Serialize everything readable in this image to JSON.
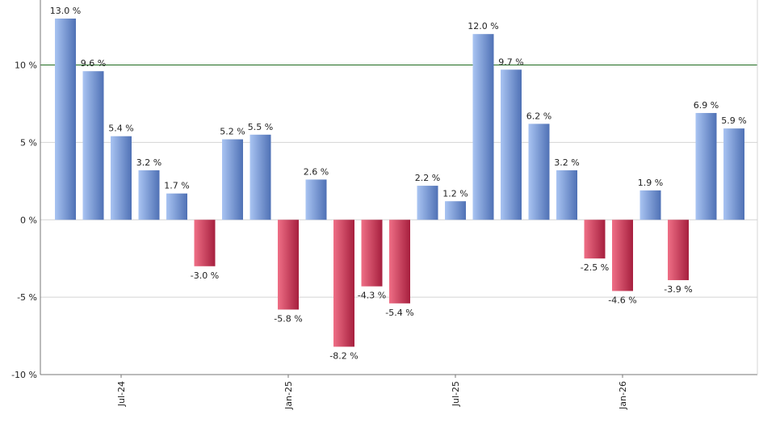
{
  "chart_data": {
    "type": "bar",
    "title": "",
    "xlabel": "",
    "ylabel": "",
    "ylim": [
      -10,
      14.2
    ],
    "yticks": [
      -10,
      -5,
      0,
      5,
      10
    ],
    "ytick_labels": [
      "-10 %",
      "-5 %",
      "0 %",
      "5 %",
      "10 %"
    ],
    "reference_line": 10,
    "grid": true,
    "colors": {
      "positive_light": "#a9c4f2",
      "positive_dark": "#4f71b5",
      "negative_light": "#ef6f86",
      "negative_dark": "#a61f3e",
      "reference_line": "#1e6b1e",
      "grid": "#d4d4d4",
      "axis": "#777777"
    },
    "values": [
      13.0,
      9.6,
      5.4,
      3.2,
      1.7,
      -3.0,
      5.2,
      5.5,
      -5.8,
      2.6,
      -8.2,
      -4.3,
      -5.4,
      2.2,
      1.2,
      12.0,
      9.7,
      6.2,
      3.2,
      -2.5,
      -4.6,
      1.9,
      -3.9,
      6.9,
      5.9
    ],
    "data_labels": [
      "13.0 %",
      "9.6 %",
      "5.4 %",
      "3.2 %",
      "1.7 %",
      "-3.0 %",
      "5.2 %",
      "5.5 %",
      "-5.8 %",
      "2.6 %",
      "-8.2 %",
      "-4.3 %",
      "-5.4 %",
      "2.2 %",
      "1.2 %",
      "12.0 %",
      "9.7 %",
      "6.2 %",
      "3.2 %",
      "-2.5 %",
      "-4.6 %",
      "1.9 %",
      "-3.9 %",
      "6.9 %",
      "5.9 %"
    ],
    "x_tick_labels": [
      {
        "bar_index": 2,
        "label": "Jul-24"
      },
      {
        "bar_index": 8,
        "label": "Jan-25"
      },
      {
        "bar_index": 14,
        "label": "Jul-25"
      },
      {
        "bar_index": 20,
        "label": "Jan-26"
      }
    ]
  }
}
